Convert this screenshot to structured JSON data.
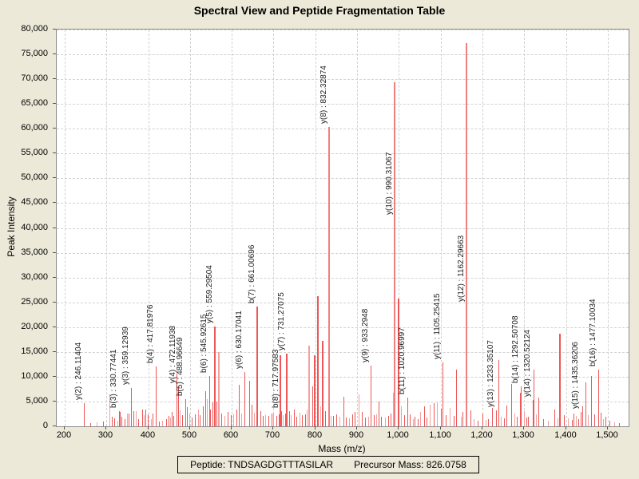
{
  "title": "Spectral View and Peptide Fragmentation Table",
  "footer": {
    "peptide_label": "Peptide: TNDSAGDGTTTASILAR",
    "precursor_label": "Precursor Mass: 826.0758"
  },
  "chart_data": {
    "type": "bar",
    "title": "Spectral View and Peptide Fragmentation Table",
    "xlabel": "Mass (m/z)",
    "ylabel": "Peak Intensity",
    "xlim": [
      181,
      1550
    ],
    "ylim": [
      0,
      80000
    ],
    "grid": true,
    "x_ticks": [
      {
        "v": 200,
        "label": "200"
      },
      {
        "v": 300,
        "label": "300"
      },
      {
        "v": 400,
        "label": "400"
      },
      {
        "v": 500,
        "label": "500"
      },
      {
        "v": 600,
        "label": "600"
      },
      {
        "v": 700,
        "label": "700"
      },
      {
        "v": 800,
        "label": "800"
      },
      {
        "v": 900,
        "label": "900"
      },
      {
        "v": 1000,
        "label": "1,000"
      },
      {
        "v": 1100,
        "label": "1,100"
      },
      {
        "v": 1200,
        "label": "1,200"
      },
      {
        "v": 1300,
        "label": "1,300"
      },
      {
        "v": 1400,
        "label": "1,400"
      },
      {
        "v": 1500,
        "label": "1,500"
      }
    ],
    "y_ticks": [
      {
        "v": 0,
        "label": "0"
      },
      {
        "v": 5000,
        "label": "5,000"
      },
      {
        "v": 10000,
        "label": "10,000"
      },
      {
        "v": 15000,
        "label": "15,000"
      },
      {
        "v": 20000,
        "label": "20,000"
      },
      {
        "v": 25000,
        "label": "25,000"
      },
      {
        "v": 30000,
        "label": "30,000"
      },
      {
        "v": 35000,
        "label": "35,000"
      },
      {
        "v": 40000,
        "label": "40,000"
      },
      {
        "v": 45000,
        "label": "45,000"
      },
      {
        "v": 50000,
        "label": "50,000"
      },
      {
        "v": 55000,
        "label": "55,000"
      },
      {
        "v": 60000,
        "label": "60,000"
      },
      {
        "v": 65000,
        "label": "65,000"
      },
      {
        "v": 70000,
        "label": "70,000"
      },
      {
        "v": 75000,
        "label": "75,000"
      },
      {
        "v": 80000,
        "label": "80,000"
      }
    ],
    "bar_colors": [
      "#ed5757",
      "#f17f7f",
      "#f4a0a0"
    ],
    "labeled_peaks": [
      {
        "label": "y(2) : 246.11404",
        "mz": 246.11404,
        "intensity": 4600,
        "shade": 0
      },
      {
        "label": "b(3) : 330.77441",
        "mz": 330.77441,
        "intensity": 3000,
        "shade": 0
      },
      {
        "label": "y(3) : 359.12939",
        "mz": 359.12939,
        "intensity": 7700,
        "shade": 0
      },
      {
        "label": "b(4) : 417.81976",
        "mz": 417.81976,
        "intensity": 12000,
        "shade": 0
      },
      {
        "label": "y(4) : 472.11938",
        "mz": 472.11938,
        "intensity": 8000,
        "shade": 0
      },
      {
        "label": "b(5) : 488.96649",
        "mz": 488.96649,
        "intensity": 5400,
        "shade": 0
      },
      {
        "label": "b(6) : 545.92615",
        "mz": 545.92615,
        "intensity": 10100,
        "shade": 0
      },
      {
        "label": "y(5) : 559.29504",
        "mz": 559.29504,
        "intensity": 20100,
        "shade": 0
      },
      {
        "label": "y(6) : 630.17041",
        "mz": 630.17041,
        "intensity": 10900,
        "shade": 0
      },
      {
        "label": "b(7) : 661.00696",
        "mz": 661.00696,
        "intensity": 24100,
        "shade": 0
      },
      {
        "label": "b(8) : 717.97583",
        "mz": 717.97583,
        "intensity": 3000,
        "shade": 0
      },
      {
        "label": "y(7) : 731.27075",
        "mz": 731.27075,
        "intensity": 14700,
        "shade": 0
      },
      {
        "label": "y(8) : 832.32874",
        "mz": 832.32874,
        "intensity": 60400,
        "shade": 1
      },
      {
        "label": "y(9) : 933.2948",
        "mz": 933.2948,
        "intensity": 12300,
        "shade": 0
      },
      {
        "label": "y(10) : 990.31067",
        "mz": 990.31067,
        "intensity": 69400,
        "shade": 1,
        "label_bottom": 42000
      },
      {
        "label": "b(11) : 1020.96997",
        "mz": 1020.96997,
        "intensity": 5800,
        "shade": 0
      },
      {
        "label": "y(11) : 1105.25415",
        "mz": 1105.25415,
        "intensity": 12800,
        "shade": 0
      },
      {
        "label": "y(12) : 1162.29663",
        "mz": 1162.29663,
        "intensity": 77300,
        "shade": 1,
        "label_bottom": 24500
      },
      {
        "label": "y(13) : 1233.35107",
        "mz": 1233.35107,
        "intensity": 3200,
        "shade": 0
      },
      {
        "label": "b(14) : 1292.50708",
        "mz": 1292.50708,
        "intensity": 8000,
        "shade": 0
      },
      {
        "label": "y(14) : 1320.52124",
        "mz": 1320.52124,
        "intensity": 5300,
        "shade": 0
      },
      {
        "label": "y(15) : 1435.36206",
        "mz": 1435.36206,
        "intensity": 2900,
        "shade": 0
      },
      {
        "label": "b(16) : 1477.10034",
        "mz": 1477.10034,
        "intensity": 11400,
        "shade": 0
      }
    ],
    "noise_peaks": [
      [
        262,
        600,
        0
      ],
      [
        277,
        800,
        2
      ],
      [
        292,
        900,
        0
      ],
      [
        307,
        6400,
        2
      ],
      [
        312,
        2000,
        0
      ],
      [
        318,
        1600,
        0
      ],
      [
        326,
        1200,
        2
      ],
      [
        332,
        2900,
        0
      ],
      [
        336,
        2000,
        0
      ],
      [
        344,
        1400,
        0
      ],
      [
        349,
        2600,
        2
      ],
      [
        353,
        2600,
        0
      ],
      [
        364,
        3100,
        0
      ],
      [
        370,
        3100,
        2
      ],
      [
        376,
        1500,
        0
      ],
      [
        385,
        3400,
        0
      ],
      [
        390,
        2200,
        2
      ],
      [
        394,
        3400,
        0
      ],
      [
        399,
        2400,
        0
      ],
      [
        406,
        1400,
        2
      ],
      [
        410,
        2600,
        0
      ],
      [
        426,
        900,
        0
      ],
      [
        433,
        1100,
        2
      ],
      [
        443,
        1500,
        0
      ],
      [
        449,
        2100,
        0
      ],
      [
        452,
        1800,
        2
      ],
      [
        456,
        2900,
        0
      ],
      [
        461,
        2100,
        0
      ],
      [
        468,
        10700,
        0
      ],
      [
        476,
        3200,
        2
      ],
      [
        481,
        2200,
        0
      ],
      [
        493,
        3800,
        0
      ],
      [
        498,
        2600,
        2
      ],
      [
        505,
        1800,
        0
      ],
      [
        512,
        2400,
        0
      ],
      [
        519,
        3300,
        2
      ],
      [
        524,
        2200,
        0
      ],
      [
        530,
        4100,
        0
      ],
      [
        536,
        7100,
        0
      ],
      [
        541,
        5500,
        2
      ],
      [
        549,
        3300,
        0
      ],
      [
        553,
        4800,
        0
      ],
      [
        563,
        5000,
        0
      ],
      [
        570,
        15000,
        2
      ],
      [
        575,
        2500,
        0
      ],
      [
        583,
        2100,
        2
      ],
      [
        590,
        2900,
        0
      ],
      [
        597,
        2200,
        0
      ],
      [
        604,
        2400,
        2
      ],
      [
        611,
        3300,
        0
      ],
      [
        617,
        8300,
        0
      ],
      [
        622,
        2500,
        2
      ],
      [
        641,
        9200,
        0
      ],
      [
        647,
        4400,
        0
      ],
      [
        653,
        2700,
        2
      ],
      [
        668,
        3000,
        0
      ],
      [
        674,
        2100,
        0
      ],
      [
        680,
        2300,
        2
      ],
      [
        687,
        2100,
        0
      ],
      [
        695,
        2600,
        0
      ],
      [
        700,
        2800,
        2
      ],
      [
        707,
        2100,
        0
      ],
      [
        712,
        2400,
        0
      ],
      [
        716,
        14400,
        0
      ],
      [
        722,
        2300,
        2
      ],
      [
        727,
        2600,
        0
      ],
      [
        737,
        3000,
        0
      ],
      [
        742,
        2300,
        2
      ],
      [
        748,
        3400,
        0
      ],
      [
        755,
        2000,
        0
      ],
      [
        762,
        2700,
        2
      ],
      [
        768,
        2300,
        0
      ],
      [
        775,
        2400,
        0
      ],
      [
        780,
        3300,
        2
      ],
      [
        786,
        16300,
        2
      ],
      [
        792,
        8000,
        0
      ],
      [
        798,
        14400,
        0
      ],
      [
        806,
        26300,
        0
      ],
      [
        812,
        4000,
        2
      ],
      [
        817,
        17300,
        0
      ],
      [
        823,
        3100,
        0
      ],
      [
        836,
        2100,
        2
      ],
      [
        843,
        2100,
        0
      ],
      [
        850,
        2400,
        0
      ],
      [
        858,
        2000,
        2
      ],
      [
        867,
        6000,
        0
      ],
      [
        873,
        1800,
        0
      ],
      [
        880,
        1600,
        2
      ],
      [
        888,
        2400,
        0
      ],
      [
        895,
        2900,
        0
      ],
      [
        904,
        6400,
        2
      ],
      [
        912,
        2900,
        0
      ],
      [
        919,
        1700,
        0
      ],
      [
        926,
        2000,
        2
      ],
      [
        940,
        2200,
        0
      ],
      [
        946,
        2400,
        2
      ],
      [
        952,
        5000,
        0
      ],
      [
        958,
        1900,
        0
      ],
      [
        966,
        1700,
        2
      ],
      [
        974,
        2100,
        0
      ],
      [
        981,
        2600,
        0
      ],
      [
        986,
        6700,
        2
      ],
      [
        999,
        25800,
        0
      ],
      [
        1005,
        4000,
        2
      ],
      [
        1012,
        2300,
        0
      ],
      [
        1026,
        2400,
        0
      ],
      [
        1033,
        1500,
        2
      ],
      [
        1038,
        1900,
        0
      ],
      [
        1045,
        1400,
        0
      ],
      [
        1051,
        2900,
        2
      ],
      [
        1060,
        4000,
        0
      ],
      [
        1066,
        1800,
        0
      ],
      [
        1073,
        4300,
        2
      ],
      [
        1083,
        4600,
        0
      ],
      [
        1092,
        4800,
        2
      ],
      [
        1100,
        3500,
        0
      ],
      [
        1113,
        2200,
        0
      ],
      [
        1121,
        3750,
        2
      ],
      [
        1131,
        2100,
        0
      ],
      [
        1137,
        11500,
        0
      ],
      [
        1148,
        2000,
        2
      ],
      [
        1153,
        2900,
        0
      ],
      [
        1172,
        3200,
        0
      ],
      [
        1180,
        1500,
        2
      ],
      [
        1188,
        1200,
        0
      ],
      [
        1201,
        2600,
        0
      ],
      [
        1208,
        1300,
        2
      ],
      [
        1213,
        1500,
        0
      ],
      [
        1223,
        3700,
        0
      ],
      [
        1238,
        13400,
        0
      ],
      [
        1245,
        2000,
        2
      ],
      [
        1252,
        1600,
        0
      ],
      [
        1258,
        4200,
        0
      ],
      [
        1268,
        8500,
        0
      ],
      [
        1276,
        2600,
        2
      ],
      [
        1283,
        2000,
        0
      ],
      [
        1290,
        6700,
        0
      ],
      [
        1300,
        3000,
        2
      ],
      [
        1305,
        1700,
        0
      ],
      [
        1310,
        2000,
        0
      ],
      [
        1322,
        11500,
        0
      ],
      [
        1329,
        2400,
        2
      ],
      [
        1334,
        5800,
        0
      ],
      [
        1345,
        1500,
        0
      ],
      [
        1356,
        1200,
        2
      ],
      [
        1372,
        3400,
        0
      ],
      [
        1379,
        1600,
        2
      ],
      [
        1386,
        18600,
        0
      ],
      [
        1395,
        2300,
        0
      ],
      [
        1404,
        1600,
        2
      ],
      [
        1414,
        1300,
        0
      ],
      [
        1419,
        2600,
        0
      ],
      [
        1424,
        2100,
        2
      ],
      [
        1430,
        1400,
        0
      ],
      [
        1440,
        4000,
        0
      ],
      [
        1446,
        8800,
        0
      ],
      [
        1453,
        2200,
        2
      ],
      [
        1461,
        10100,
        0
      ],
      [
        1468,
        2400,
        0
      ],
      [
        1483,
        2700,
        0
      ],
      [
        1489,
        1500,
        2
      ],
      [
        1494,
        1900,
        0
      ],
      [
        1505,
        1200,
        0
      ],
      [
        1516,
        800,
        2
      ],
      [
        1527,
        600,
        0
      ]
    ]
  }
}
